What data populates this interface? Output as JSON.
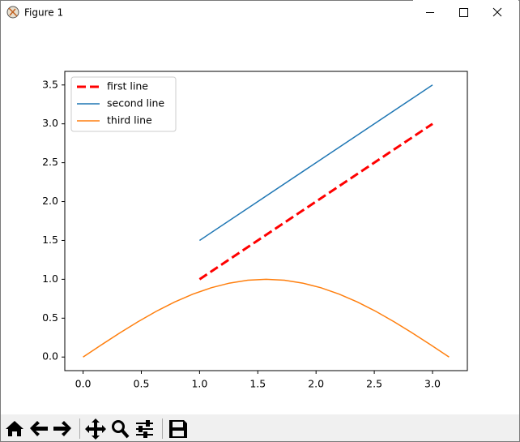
{
  "window": {
    "title": "Figure 1"
  },
  "chart_data": {
    "type": "line",
    "xlim": [
      -0.157,
      3.299
    ],
    "ylim": [
      -0.175,
      3.675
    ],
    "xticks": [
      {
        "value": 0,
        "label": "0.0"
      },
      0.5,
      {
        "value": 1,
        "label": "1.0"
      },
      1.5,
      {
        "value": 2,
        "label": "2.0"
      },
      2.5,
      {
        "value": 3,
        "label": "3.0"
      }
    ],
    "yticks": [
      {
        "value": 0,
        "label": "0.0"
      },
      0.5,
      {
        "value": 1,
        "label": "1.0"
      },
      1.5,
      {
        "value": 2,
        "label": "2.0"
      },
      2.5,
      {
        "value": 3,
        "label": "3.0"
      },
      3.5
    ],
    "grid": false,
    "legend": "upper left",
    "series": [
      {
        "name": "first line",
        "color": "#ff0000",
        "linestyle": "dashed",
        "linewidth": 3,
        "x": [
          1,
          2,
          3
        ],
        "values": [
          1,
          2,
          3
        ]
      },
      {
        "name": "second line",
        "color": "#1f77b4",
        "linestyle": "solid",
        "linewidth": 1.5,
        "x": [
          1,
          2,
          3
        ],
        "values": [
          1.5,
          2.5,
          3.5
        ]
      },
      {
        "name": "third line",
        "color": "#ff7f0e",
        "linestyle": "solid",
        "linewidth": 1.5,
        "x": [
          0,
          0.157,
          0.314,
          0.471,
          0.628,
          0.785,
          0.942,
          1.1,
          1.257,
          1.414,
          1.571,
          1.728,
          1.885,
          2.042,
          2.199,
          2.356,
          2.513,
          2.67,
          2.827,
          2.985,
          3.142
        ],
        "values": [
          0,
          0.156,
          0.309,
          0.454,
          0.588,
          0.707,
          0.809,
          0.891,
          0.951,
          0.988,
          1,
          0.988,
          0.951,
          0.891,
          0.809,
          0.707,
          0.588,
          0.454,
          0.309,
          0.156,
          0
        ]
      }
    ]
  }
}
